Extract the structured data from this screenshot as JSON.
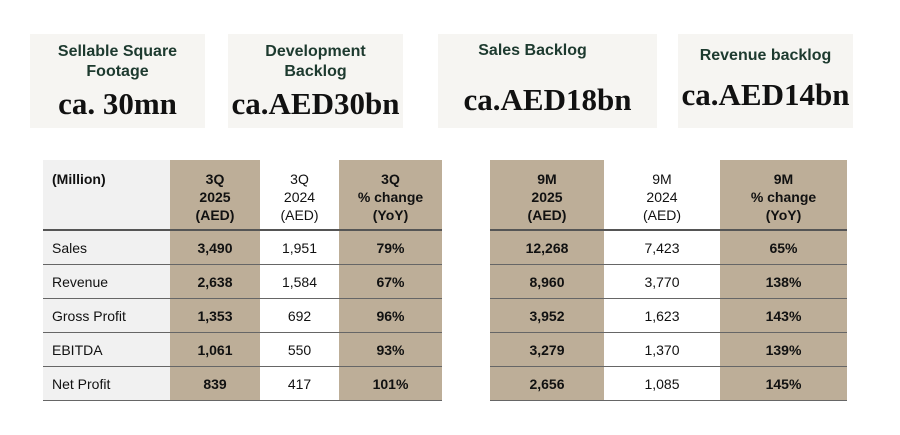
{
  "cards": [
    {
      "title": "Sellable Square Footage",
      "value": "ca. 30mn"
    },
    {
      "title": "Development Backlog",
      "value": "ca.AED30bn"
    },
    {
      "title": "Sales Backlog",
      "value": "ca.AED18bn"
    },
    {
      "title": "Revenue backlog",
      "value": "ca.AED14bn"
    }
  ],
  "colors": {
    "tan": "#bdae98",
    "card_bg": "#f6f5f2",
    "title": "#1d3a2f"
  },
  "quarter_table": {
    "corner": "(Million)",
    "headers": [
      [
        "3Q",
        "2025",
        "(AED)"
      ],
      [
        "3Q",
        "2024",
        "(AED)"
      ],
      [
        "3Q",
        "% change",
        "(YoY)"
      ]
    ],
    "rows": [
      {
        "label": "Sales",
        "values": [
          "3,490",
          "1,951",
          "79%"
        ]
      },
      {
        "label": "Revenue",
        "values": [
          "2,638",
          "1,584",
          "67%"
        ]
      },
      {
        "label": "Gross Profit",
        "values": [
          "1,353",
          "692",
          "96%"
        ]
      },
      {
        "label": "EBITDA",
        "values": [
          "1,061",
          "550",
          "93%"
        ]
      },
      {
        "label": "Net Profit",
        "values": [
          "839",
          "417",
          "101%"
        ]
      }
    ]
  },
  "ytd_table": {
    "headers": [
      [
        "9M",
        "2025",
        "(AED)"
      ],
      [
        "9M",
        "2024",
        "(AED)"
      ],
      [
        "9M",
        "% change",
        "(YoY)"
      ]
    ],
    "rows": [
      {
        "values": [
          "12,268",
          "7,423",
          "65%"
        ]
      },
      {
        "values": [
          "8,960",
          "3,770",
          "138%"
        ]
      },
      {
        "values": [
          "3,952",
          "1,623",
          "143%"
        ]
      },
      {
        "values": [
          "3,279",
          "1,370",
          "139%"
        ]
      },
      {
        "values": [
          "2,656",
          "1,085",
          "145%"
        ]
      }
    ]
  }
}
